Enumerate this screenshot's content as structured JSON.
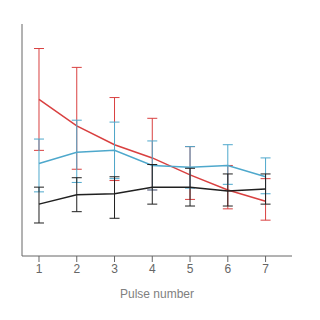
{
  "chart_data": {
    "type": "line",
    "xlabel": "Pulse number",
    "x": [
      1,
      2,
      3,
      4,
      5,
      6,
      7
    ],
    "series": [
      {
        "color": "#d94040",
        "values": [
          0.78,
          0.64,
          0.54,
          0.47,
          0.38,
          0.3,
          0.24
        ],
        "error_lower": [
          0.27,
          0.23,
          0.19,
          0.17,
          0.13,
          0.1,
          0.1
        ],
        "error_upper": [
          0.27,
          0.31,
          0.25,
          0.21,
          0.15,
          0.13,
          0.12
        ]
      },
      {
        "color": "#4ea8cc",
        "values": [
          0.44,
          0.5,
          0.51,
          0.43,
          0.42,
          0.43,
          0.37
        ],
        "error_lower": [
          0.15,
          0.16,
          0.15,
          0.13,
          0.11,
          0.1,
          0.09
        ],
        "error_upper": [
          0.13,
          0.17,
          0.15,
          0.13,
          0.11,
          0.11,
          0.1
        ]
      },
      {
        "color": "#202020",
        "values": [
          0.225,
          0.275,
          0.28,
          0.315,
          0.315,
          0.295,
          0.305
        ],
        "error_lower": [
          0.1,
          0.09,
          0.13,
          0.09,
          0.1,
          0.08,
          0.08
        ],
        "error_upper": [
          0.09,
          0.09,
          0.09,
          0.12,
          0.1,
          0.09,
          0.08
        ]
      }
    ],
    "xlim": [
      0.55,
      7.7
    ],
    "xticks": [
      1,
      2,
      3,
      4,
      5,
      6,
      7
    ],
    "ylim": [
      -0.05,
      1.18
    ],
    "yticks": [],
    "grid": false,
    "tick_labels": "x"
  }
}
